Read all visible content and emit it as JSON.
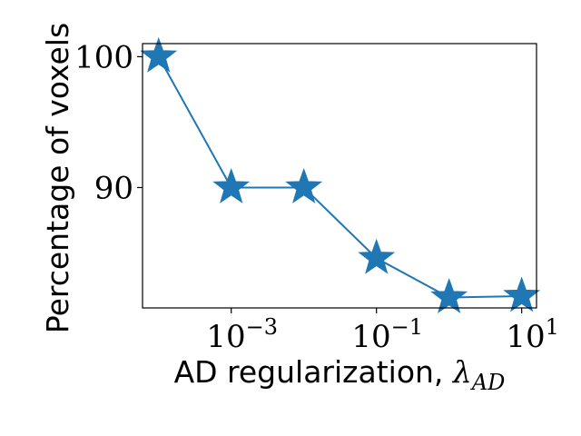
{
  "chart_data": {
    "type": "line",
    "title": "",
    "xlabel": "AD regularization, ",
    "xlabel_symbol": "λ",
    "xlabel_subscript": "AD",
    "ylabel": "Percentage of voxels",
    "xscale": "log",
    "xlim": [
      6e-05,
      16
    ],
    "ylim": [
      80.8,
      101.0
    ],
    "x_ticks": [
      {
        "value": 0.001,
        "base": "10",
        "exp": "−3"
      },
      {
        "value": 0.1,
        "base": "10",
        "exp": "−1"
      },
      {
        "value": 10,
        "base": "10",
        "exp": "1"
      }
    ],
    "y_ticks": [
      {
        "value": 90,
        "label": "90"
      },
      {
        "value": 100,
        "label": "100"
      }
    ],
    "series": [
      {
        "color": "#1f77b4",
        "marker": "star",
        "x": [
          0.0001,
          0.001,
          0.01,
          0.1,
          1,
          10
        ],
        "y": [
          100.0,
          90.0,
          90.0,
          84.6,
          81.6,
          81.7
        ]
      }
    ],
    "grid": false,
    "legend": "none"
  }
}
